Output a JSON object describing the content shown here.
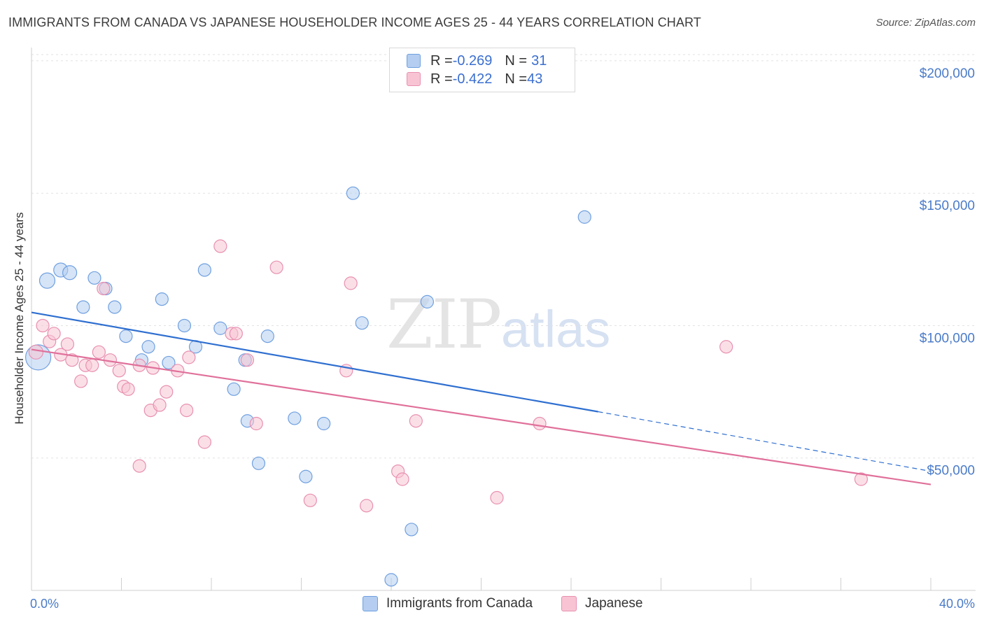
{
  "header": {
    "title": "IMMIGRANTS FROM CANADA VS JAPANESE HOUSEHOLDER INCOME AGES 25 - 44 YEARS CORRELATION CHART",
    "source": "Source: ZipAtlas.com"
  },
  "watermark": {
    "zip": "ZIP",
    "atlas": "atlas"
  },
  "legend": {
    "rows": [
      {
        "r_label": "R = ",
        "r_value": "-0.269",
        "n_label": "N = ",
        "n_value": "31",
        "color": "#aac8f0"
      },
      {
        "r_label": "R = ",
        "r_value": "-0.422",
        "n_label": "N = ",
        "n_value": "43",
        "color": "#f8bcd0"
      }
    ]
  },
  "bottom_legend": {
    "items": [
      {
        "label": "Immigrants from Canada",
        "color": "#aac8f0"
      },
      {
        "label": "Japanese",
        "color": "#f8bcd0"
      }
    ]
  },
  "chart_data": {
    "type": "scatter",
    "ylabel": "Householder Income Ages 25 - 44 years",
    "xlim": [
      0,
      40
    ],
    "ylim": [
      0,
      205000
    ],
    "x_tick_labels": [
      "0.0%",
      "40.0%"
    ],
    "y_ticks": [
      {
        "value": 50000,
        "label": "$50,000"
      },
      {
        "value": 100000,
        "label": "$100,000"
      },
      {
        "value": 150000,
        "label": "$150,000"
      },
      {
        "value": 200000,
        "label": "$200,000"
      }
    ],
    "series": [
      {
        "name": "Immigrants from Canada",
        "color": "#6fa0e0",
        "fill": "#b4cdf0",
        "trend": {
          "x1": 0,
          "y1": 105000,
          "x2": 25.2,
          "y2": 67500,
          "dash_to_x": 40,
          "dash_to_y": 45000,
          "color": "#2f6fd0"
        },
        "points": [
          [
            0.3,
            88000,
            18
          ],
          [
            0.7,
            117000,
            11
          ],
          [
            1.3,
            121000,
            10
          ],
          [
            1.7,
            120000,
            10
          ],
          [
            2.3,
            107000,
            9
          ],
          [
            2.8,
            118000,
            9
          ],
          [
            3.3,
            114000,
            9
          ],
          [
            3.7,
            107000,
            9
          ],
          [
            4.2,
            96000,
            9
          ],
          [
            4.9,
            87000,
            9
          ],
          [
            5.2,
            92000,
            9
          ],
          [
            5.8,
            110000,
            9
          ],
          [
            6.1,
            86000,
            9
          ],
          [
            6.8,
            100000,
            9
          ],
          [
            7.3,
            92000,
            9
          ],
          [
            7.7,
            121000,
            9
          ],
          [
            8.4,
            99000,
            9
          ],
          [
            9.0,
            76000,
            9
          ],
          [
            9.5,
            87000,
            9
          ],
          [
            9.6,
            64000,
            9
          ],
          [
            10.1,
            48000,
            9
          ],
          [
            10.5,
            96000,
            9
          ],
          [
            11.7,
            65000,
            9
          ],
          [
            12.2,
            43000,
            9
          ],
          [
            13.0,
            63000,
            9
          ],
          [
            14.3,
            150000,
            9
          ],
          [
            14.7,
            101000,
            9
          ],
          [
            16.0,
            4000,
            9
          ],
          [
            16.9,
            23000,
            9
          ],
          [
            17.6,
            109000,
            9
          ],
          [
            24.6,
            141000,
            9
          ]
        ]
      },
      {
        "name": "Japanese",
        "color": "#e890b0",
        "fill": "#f8c4d4",
        "trend": {
          "x1": 0,
          "y1": 91000,
          "x2": 40,
          "y2": 40000,
          "color": "#e0709a"
        },
        "points": [
          [
            0.2,
            90000,
            10
          ],
          [
            0.5,
            100000,
            9
          ],
          [
            0.8,
            94000,
            9
          ],
          [
            1.0,
            97000,
            9
          ],
          [
            1.3,
            89000,
            9
          ],
          [
            1.6,
            93000,
            9
          ],
          [
            1.8,
            87000,
            9
          ],
          [
            2.2,
            79000,
            9
          ],
          [
            2.4,
            85000,
            9
          ],
          [
            2.7,
            85000,
            9
          ],
          [
            3.0,
            90000,
            9
          ],
          [
            3.2,
            114000,
            9
          ],
          [
            3.5,
            87000,
            9
          ],
          [
            3.9,
            83000,
            9
          ],
          [
            4.1,
            77000,
            9
          ],
          [
            4.3,
            76000,
            9
          ],
          [
            4.8,
            85000,
            9
          ],
          [
            4.8,
            47000,
            9
          ],
          [
            5.3,
            68000,
            9
          ],
          [
            5.4,
            84000,
            9
          ],
          [
            5.7,
            70000,
            9
          ],
          [
            6.0,
            75000,
            9
          ],
          [
            6.5,
            83000,
            9
          ],
          [
            6.9,
            68000,
            9
          ],
          [
            7.0,
            88000,
            9
          ],
          [
            7.7,
            56000,
            9
          ],
          [
            8.4,
            130000,
            9
          ],
          [
            8.9,
            97000,
            9
          ],
          [
            9.1,
            97000,
            9
          ],
          [
            9.6,
            87000,
            9
          ],
          [
            10.0,
            63000,
            9
          ],
          [
            10.9,
            122000,
            9
          ],
          [
            12.4,
            34000,
            9
          ],
          [
            14.0,
            83000,
            9
          ],
          [
            14.2,
            116000,
            9
          ],
          [
            14.9,
            32000,
            9
          ],
          [
            16.3,
            45000,
            9
          ],
          [
            16.5,
            42000,
            9
          ],
          [
            17.1,
            64000,
            9
          ],
          [
            20.7,
            35000,
            9
          ],
          [
            22.6,
            63000,
            9
          ],
          [
            30.9,
            92000,
            9
          ],
          [
            36.9,
            42000,
            9
          ]
        ]
      }
    ]
  }
}
